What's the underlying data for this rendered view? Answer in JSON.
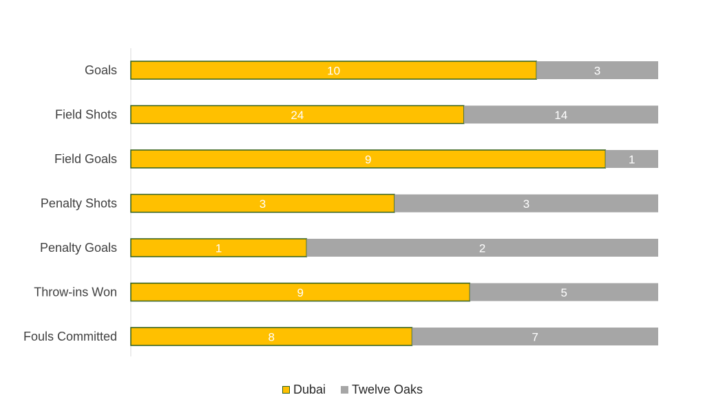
{
  "chart_data": {
    "type": "bar",
    "orientation": "horizontal",
    "stacking": "percent",
    "categories": [
      "Goals",
      "Field Shots",
      "Field Goals",
      "Penalty Shots",
      "Penalty Goals",
      "Throw-ins Won",
      "Fouls Committed"
    ],
    "series": [
      {
        "name": "Dubai",
        "values": [
          10,
          24,
          9,
          3,
          1,
          9,
          8
        ],
        "color": "#FFC000",
        "border": "#2E5E1E"
      },
      {
        "name": "Twelve Oaks",
        "values": [
          3,
          14,
          1,
          3,
          2,
          5,
          7
        ],
        "color": "#A6A6A6"
      }
    ],
    "title": "",
    "xlabel": "",
    "ylabel": "",
    "legend_position": "bottom",
    "grid": false
  }
}
